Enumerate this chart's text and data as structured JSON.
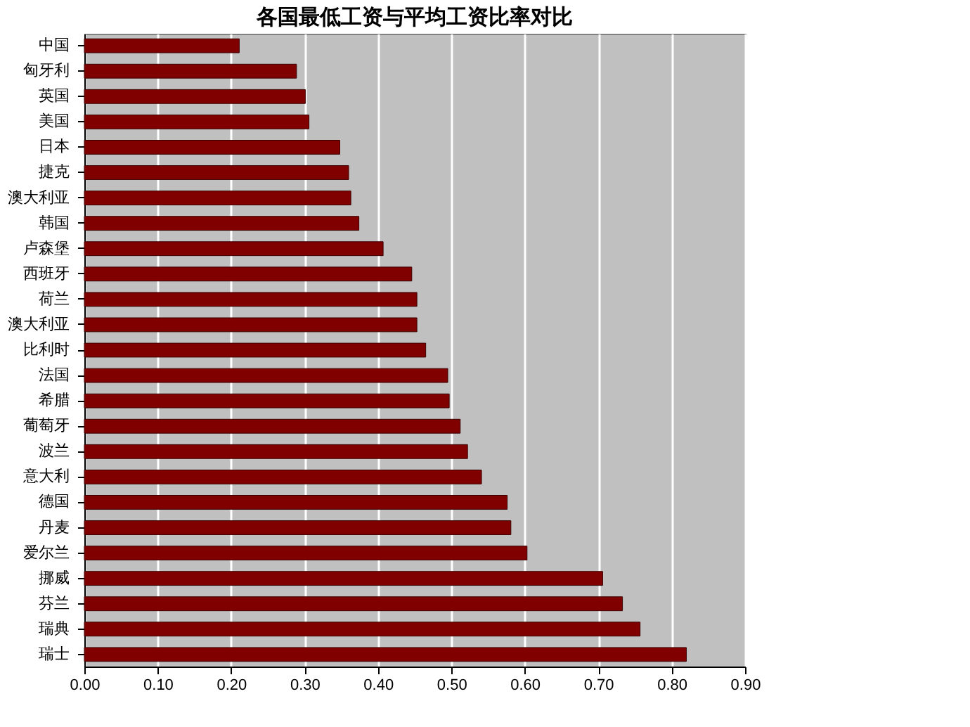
{
  "chart_data": {
    "type": "bar",
    "orientation": "horizontal",
    "title": "各国最低工资与平均工资比率对比",
    "categories": [
      "中国",
      "匈牙利",
      "英国",
      "美国",
      "日本",
      "捷克",
      "澳大利亚",
      "韩国",
      "卢森堡",
      "西班牙",
      "荷兰",
      "澳大利亚",
      "比利时",
      "法国",
      "希腊",
      "葡萄牙",
      "波兰",
      "意大利",
      "德国",
      "丹麦",
      "爱尔兰",
      "挪威",
      "芬兰",
      "瑞典",
      "瑞士"
    ],
    "values": [
      0.211,
      0.289,
      0.301,
      0.306,
      0.348,
      0.36,
      0.363,
      0.374,
      0.407,
      0.446,
      0.453,
      0.453,
      0.465,
      0.495,
      0.497,
      0.512,
      0.522,
      0.541,
      0.576,
      0.581,
      0.603,
      0.706,
      0.733,
      0.757,
      0.82
    ],
    "color": "#800000",
    "xlim": [
      0,
      0.9
    ],
    "xticks": [
      {
        "value": 0,
        "label": "0.00"
      },
      {
        "value": 0.1,
        "label": "0.10"
      },
      {
        "value": 0.2,
        "label": "0.20"
      },
      {
        "value": 0.3,
        "label": "0.30"
      },
      {
        "value": 0.4,
        "label": "0.40"
      },
      {
        "value": 0.5,
        "label": "0.50"
      },
      {
        "value": 0.6,
        "label": "0.60"
      },
      {
        "value": 0.7,
        "label": "0.70"
      },
      {
        "value": 0.8,
        "label": "0.80"
      },
      {
        "value": 0.9,
        "label": "0.90"
      }
    ],
    "grid": "x"
  }
}
